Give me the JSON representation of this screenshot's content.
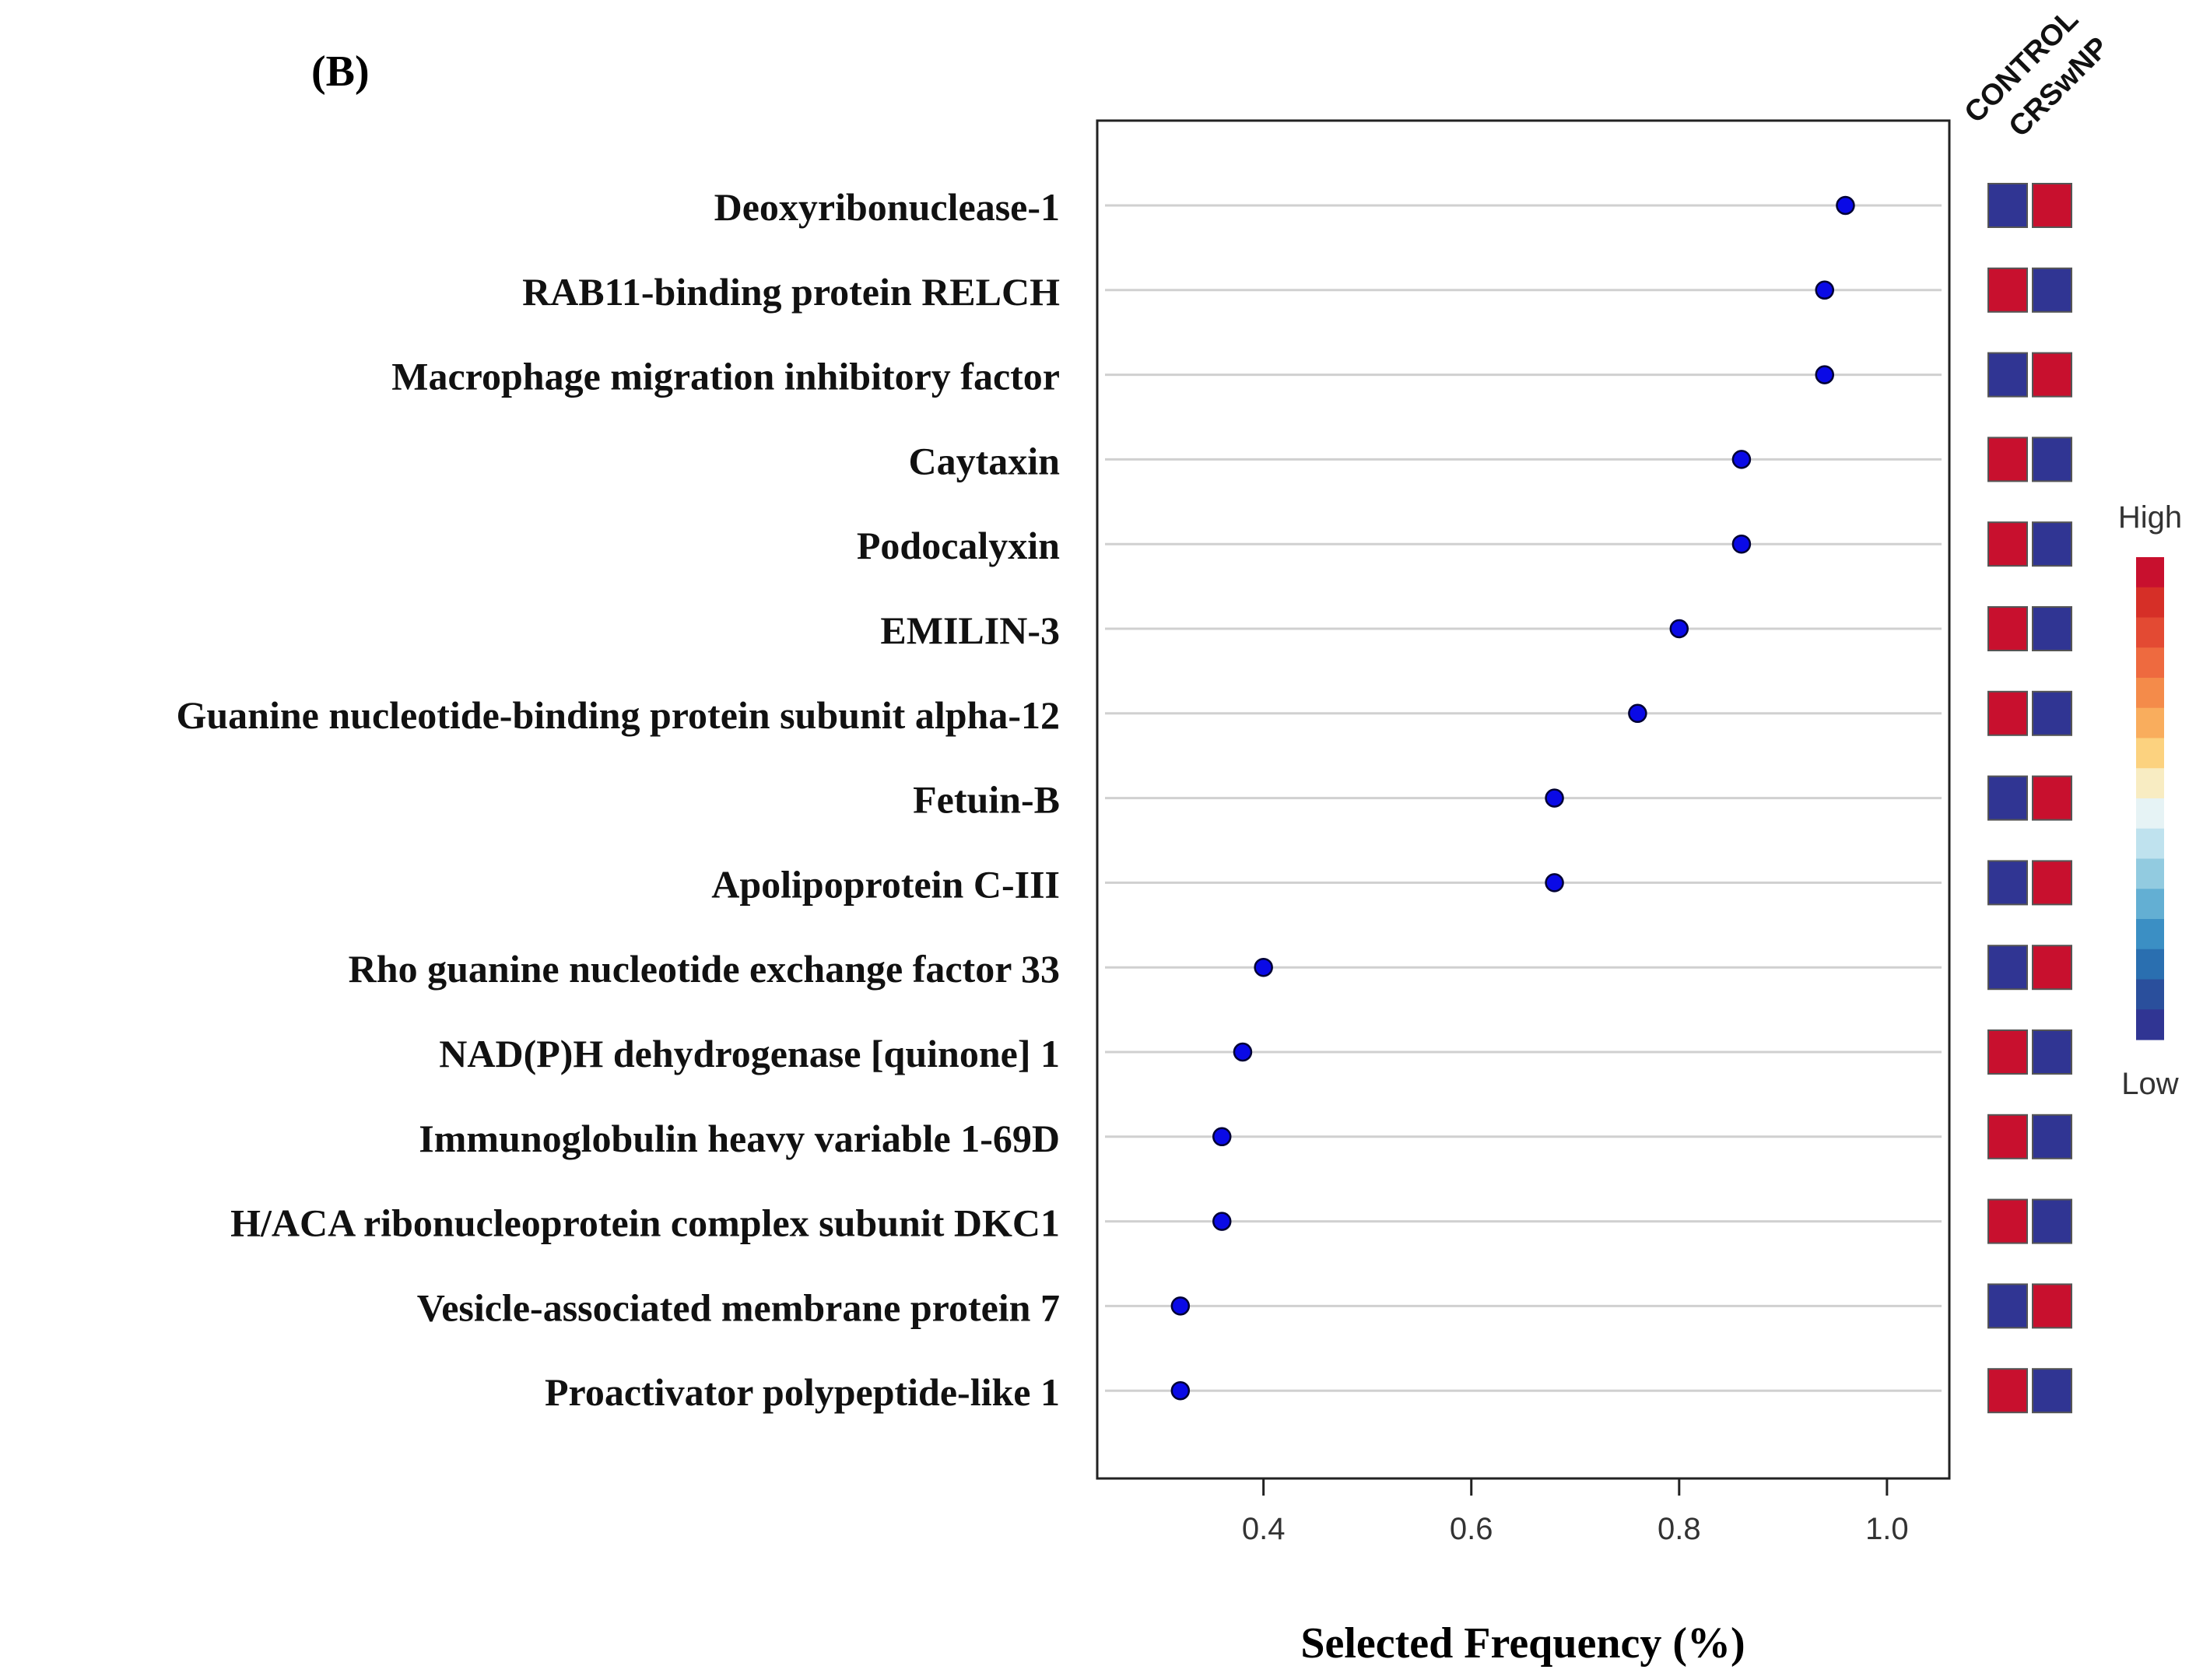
{
  "chart_data": {
    "type": "dot",
    "panel_label": "(B)",
    "xlabel": "Selected Frequency (%)",
    "xlim": [
      0.24,
      1.06
    ],
    "xticks": [
      0.4,
      0.6,
      0.8,
      1.0
    ],
    "xtick_labels": [
      "0.4",
      "0.6",
      "0.8",
      "1.0"
    ],
    "grid": "horizontal",
    "categories": [
      "Deoxyribonuclease-1",
      "RAB11-binding protein RELCH",
      "Macrophage migration inhibitory factor",
      "Caytaxin",
      "Podocalyxin",
      "EMILIN-3",
      "Guanine nucleotide-binding protein subunit alpha-12",
      "Fetuin-B",
      "Apolipoprotein C-III",
      "Rho guanine nucleotide exchange factor 33",
      "NAD(P)H dehydrogenase [quinone] 1",
      "Immunoglobulin heavy variable 1-69D",
      "H/ACA ribonucleoprotein complex subunit DKC1",
      "Vesicle-associated membrane protein 7",
      "Proactivator polypeptide-like 1"
    ],
    "values": [
      0.96,
      0.94,
      0.94,
      0.86,
      0.86,
      0.8,
      0.76,
      0.68,
      0.68,
      0.4,
      0.38,
      0.36,
      0.36,
      0.32,
      0.32
    ],
    "point_color": "#0a0ae6",
    "heatmap": {
      "columns": [
        "CONTROL",
        "CRSwNP"
      ],
      "levels": [
        [
          "low",
          "high"
        ],
        [
          "high",
          "low"
        ],
        [
          "low",
          "high"
        ],
        [
          "high",
          "low"
        ],
        [
          "high",
          "low"
        ],
        [
          "high",
          "low"
        ],
        [
          "high",
          "low"
        ],
        [
          "low",
          "high"
        ],
        [
          "low",
          "high"
        ],
        [
          "low",
          "high"
        ],
        [
          "high",
          "low"
        ],
        [
          "high",
          "low"
        ],
        [
          "high",
          "low"
        ],
        [
          "low",
          "high"
        ],
        [
          "high",
          "low"
        ]
      ],
      "high_color": "#c8102e",
      "low_color": "#303593"
    },
    "legend": {
      "high_label": "High",
      "low_label": "Low",
      "placement": "right",
      "colors": [
        "#c8102e",
        "#d62f27",
        "#e34a33",
        "#ee6a3f",
        "#f48b4a",
        "#f9ad5d",
        "#fcd27f",
        "#f8ecc2",
        "#e6f3f5",
        "#bfe2ee",
        "#92cbe0",
        "#63afd3",
        "#3b8fc4",
        "#2a6fb0",
        "#2a4f9c",
        "#303593"
      ]
    }
  }
}
